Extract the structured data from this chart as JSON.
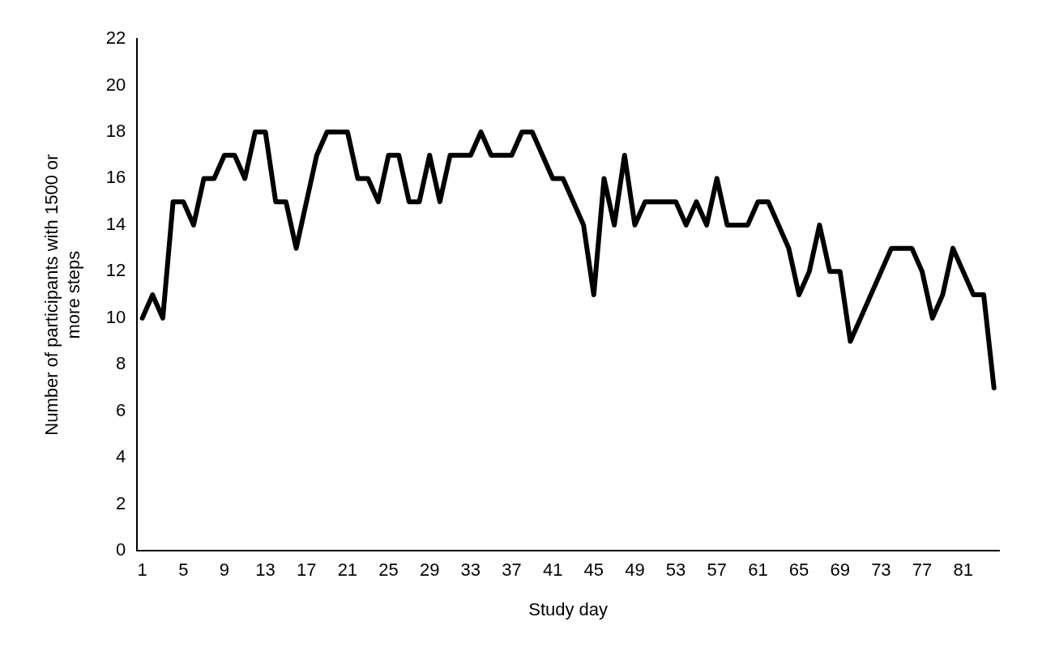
{
  "chart_data": {
    "type": "line",
    "xlabel": "Study day",
    "ylabel": "Number of participants with 1500 or more steps",
    "categories": [
      "1",
      null,
      null,
      null,
      "5",
      null,
      null,
      null,
      "9",
      null,
      null,
      null,
      "13",
      null,
      null,
      null,
      "17",
      null,
      null,
      null,
      "21",
      null,
      null,
      null,
      "25",
      null,
      null,
      null,
      "29",
      null,
      null,
      null,
      "33",
      null,
      null,
      null,
      "37",
      null,
      null,
      null,
      "41",
      null,
      null,
      null,
      "45",
      null,
      null,
      null,
      "49",
      null,
      null,
      null,
      "53",
      null,
      null,
      null,
      "57",
      null,
      null,
      null,
      "61",
      null,
      null,
      null,
      "65",
      null,
      null,
      null,
      "69",
      null,
      null,
      null,
      "73",
      null,
      null,
      null,
      "77",
      null,
      null,
      null,
      "81",
      null,
      null,
      null
    ],
    "series": [
      {
        "color": "#000000",
        "values": [
          10,
          11,
          10,
          15,
          15,
          14,
          16,
          16,
          17,
          17,
          16,
          18,
          18,
          15,
          15,
          13,
          15,
          17,
          18,
          18,
          18,
          16,
          16,
          15,
          17,
          17,
          15,
          15,
          17,
          15,
          17,
          17,
          17,
          18,
          17,
          17,
          17,
          18,
          18,
          17,
          16,
          16,
          15,
          14,
          11,
          16,
          14,
          17,
          14,
          15,
          15,
          15,
          15,
          14,
          15,
          14,
          16,
          14,
          14,
          14,
          15,
          15,
          14,
          13,
          11,
          12,
          14,
          12,
          12,
          9,
          10,
          11,
          12,
          13,
          13,
          13,
          12,
          10,
          11,
          13,
          12,
          11,
          11,
          7
        ]
      }
    ],
    "ylim": [
      0,
      22
    ],
    "yticks": [
      0,
      2,
      4,
      6,
      8,
      10,
      12,
      14,
      16,
      18,
      20,
      22
    ],
    "grid": false,
    "legend": false,
    "marker": "none",
    "line_style": "solid"
  }
}
